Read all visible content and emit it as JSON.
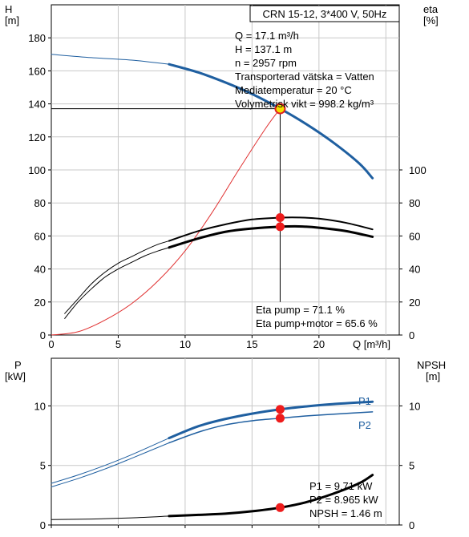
{
  "chart_data": [
    {
      "type": "line",
      "title": "CRN 15-12, 3*400 V, 50Hz",
      "xlabel": "Q [m³/h]",
      "ylabel_left": [
        "H",
        "[m]"
      ],
      "ylabel_right": [
        "eta",
        "[%]"
      ],
      "xlim": [
        0,
        26
      ],
      "ylim_left": [
        0,
        200
      ],
      "ylim_right": [
        0,
        200
      ],
      "xticks": [
        0,
        5,
        10,
        15,
        20
      ],
      "yticks_left": [
        0,
        20,
        40,
        60,
        80,
        100,
        120,
        140,
        160,
        180
      ],
      "yticks_right": [
        0,
        20,
        40,
        60,
        80,
        100
      ],
      "grid": true,
      "info_lines": [
        "Q = 17.1 m³/h",
        "H = 137.1 m",
        "n = 2957 rpm",
        "Transporterad vätska = Vatten",
        "Mediatemperatur = 20 °C",
        "Volymetrisk vikt = 998.2 kg/m³"
      ],
      "eta_labels": [
        "Eta pump = 71.1 %",
        "Eta pump+motor = 65.6 %"
      ],
      "series": [
        {
          "x": [
            0,
            3,
            6,
            8.8
          ],
          "y": [
            170,
            168,
            166.5,
            164
          ],
          "color": "#1f5fa0",
          "width": 1
        },
        {
          "x": [
            8.8,
            11,
            13,
            15,
            17.1,
            19,
            21,
            23,
            24
          ],
          "y": [
            164,
            159,
            153,
            146,
            137.1,
            128,
            117,
            104,
            95
          ],
          "color": "#1f5fa0",
          "width": 3
        },
        {
          "x": [
            0,
            2,
            4,
            6,
            8,
            10,
            12,
            14,
            16,
            17.1
          ],
          "y": [
            0,
            2,
            9,
            19,
            33,
            51,
            74,
            100,
            125,
            137.1
          ],
          "color": "#e03030",
          "width": 1
        },
        {
          "x": [
            1,
            2,
            3,
            4,
            5,
            6,
            7,
            8,
            8.8
          ],
          "y": [
            13,
            22,
            31,
            38,
            43.5,
            47.5,
            51.5,
            55,
            57
          ],
          "color": "#000000",
          "width": 1
        },
        {
          "x": [
            8.8,
            11,
            13,
            15,
            17.1,
            18.5,
            20,
            22,
            24
          ],
          "y": [
            57,
            63,
            67,
            70,
            71.1,
            71.2,
            70.5,
            68,
            64
          ],
          "color": "#000000",
          "width": 2
        },
        {
          "x": [
            1,
            2,
            3,
            4,
            5,
            6,
            7,
            8,
            8.8
          ],
          "y": [
            10,
            20,
            28,
            35,
            40,
            44,
            48,
            51,
            53
          ],
          "color": "#000000",
          "width": 1
        },
        {
          "x": [
            8.8,
            11,
            13,
            15,
            17.1,
            18.5,
            20,
            22,
            24
          ],
          "y": [
            53,
            58.5,
            62.5,
            64.5,
            65.6,
            65.8,
            65,
            63,
            59.5
          ],
          "color": "#000000",
          "width": 3
        }
      ],
      "operating_point": {
        "x": 17.1,
        "h": 137.1,
        "eta_pump": 71.1,
        "eta_total": 65.6
      }
    },
    {
      "type": "line",
      "xlabel": "",
      "ylabel_left": [
        "P",
        "[kW]"
      ],
      "ylabel_right": [
        "NPSH",
        "[m]"
      ],
      "xlim": [
        0,
        26
      ],
      "ylim_left": [
        0,
        14
      ],
      "ylim_right": [
        0,
        14
      ],
      "xticks": [
        0,
        5,
        10,
        15,
        20
      ],
      "yticks_left": [
        0,
        5,
        10
      ],
      "yticks_right": [
        0,
        5,
        10
      ],
      "grid": true,
      "info_lines": [
        "P1 = 9.71 kW",
        "P2 = 8.965 kW",
        "NPSH = 1.46 m"
      ],
      "series_labels": [
        "P1",
        "P2"
      ],
      "series": [
        {
          "name": "P1",
          "x": [
            0,
            2,
            4,
            6,
            8.8
          ],
          "y": [
            3.5,
            4.2,
            5.0,
            5.9,
            7.3
          ],
          "color": "#1f5fa0",
          "width": 1
        },
        {
          "name": "P1",
          "x": [
            8.8,
            11,
            13,
            15,
            17.1,
            19,
            21,
            24
          ],
          "y": [
            7.3,
            8.3,
            8.9,
            9.35,
            9.71,
            9.95,
            10.15,
            10.35
          ],
          "color": "#1f5fa0",
          "width": 3
        },
        {
          "name": "P2",
          "x": [
            0,
            2,
            4,
            6,
            8.8
          ],
          "y": [
            3.2,
            3.9,
            4.7,
            5.6,
            6.9
          ],
          "color": "#1f5fa0",
          "width": 1
        },
        {
          "name": "P2",
          "x": [
            8.8,
            11,
            13,
            15,
            17.1,
            19,
            21,
            24
          ],
          "y": [
            6.9,
            7.8,
            8.4,
            8.75,
            8.965,
            9.15,
            9.3,
            9.5
          ],
          "color": "#1f5fa0",
          "width": 1.5
        },
        {
          "name": "NPSH",
          "x": [
            0,
            3,
            6,
            8.8
          ],
          "y": [
            0.45,
            0.5,
            0.6,
            0.75
          ],
          "color": "#000000",
          "width": 1
        },
        {
          "name": "NPSH",
          "x": [
            8.8,
            11,
            13,
            15,
            17.1,
            19,
            21,
            23,
            24
          ],
          "y": [
            0.75,
            0.85,
            0.95,
            1.15,
            1.46,
            1.9,
            2.6,
            3.5,
            4.2
          ],
          "color": "#000000",
          "width": 3
        }
      ],
      "operating_point": {
        "x": 17.1,
        "p1": 9.71,
        "p2": 8.965,
        "npsh": 1.46
      }
    }
  ]
}
